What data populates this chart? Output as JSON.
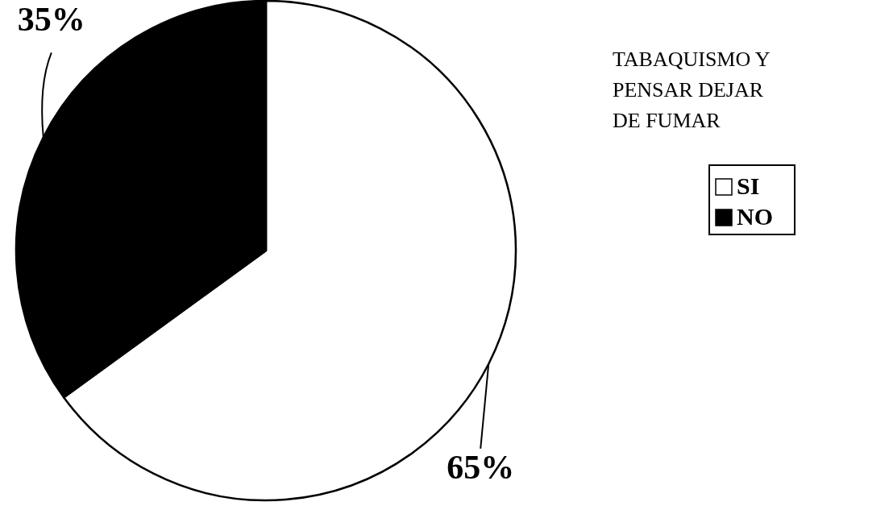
{
  "chart_data": {
    "type": "pie",
    "title": "TABAQUISMO Y PENSAR DEJAR DE FUMAR",
    "categories": [
      "SI",
      "NO"
    ],
    "values": [
      65,
      35
    ],
    "colors": [
      "#ffffff",
      "#000000"
    ],
    "value_labels": [
      "65%",
      "35%"
    ],
    "legend": "right"
  }
}
